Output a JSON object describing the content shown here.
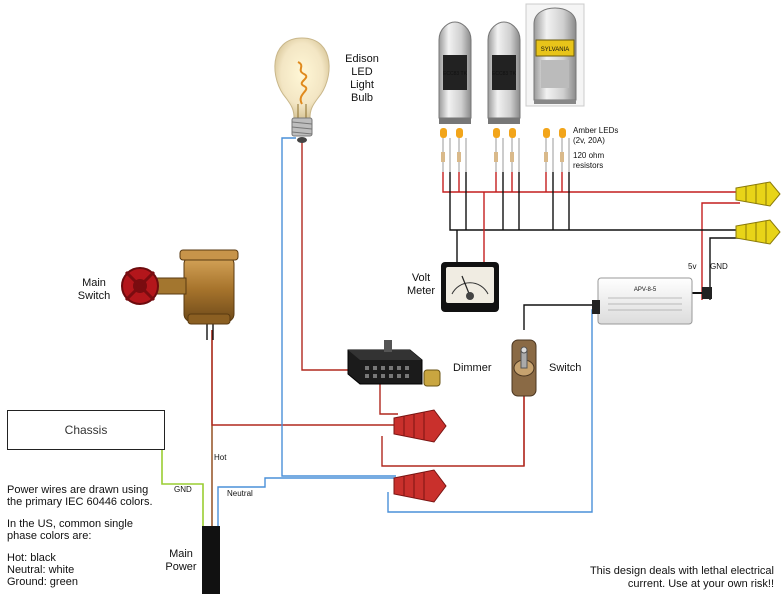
{
  "labels": {
    "bulb": [
      "Edison",
      "LED",
      "Light",
      "Bulb"
    ],
    "main_switch": [
      "Main",
      "Switch"
    ],
    "led_note": [
      "Amber LEDs",
      "(2v, 20A)"
    ],
    "resistor_note": [
      "120 ohm",
      "resistors"
    ],
    "volt_meter": [
      "Volt",
      "Meter"
    ],
    "dimmer": "Dimmer",
    "switch": "Switch",
    "chassis": "Chassis",
    "gnd": "GND",
    "gnd_psu": "GND",
    "v5": "5v",
    "hot": "Hot",
    "neutral": "Neutral",
    "main_power": [
      "Main",
      "Power"
    ],
    "tube_label": "ECC83 TK",
    "tube_brand": "SYLVANIA",
    "psu_label": "APV-8-5"
  },
  "notes": {
    "iec_line1": "Power wires are drawn using",
    "iec_line2": "the primary IEC 60446 colors.",
    "us_line1": "In the US, common single",
    "us_line2": "phase colors are:",
    "hot": "Hot: black",
    "neutral": "Neutral: white",
    "ground": "Ground: green",
    "warning_line1": "This design deals with lethal electrical",
    "warning_line2": "current. Use at your own risk!!"
  },
  "colors": {
    "hot_wire": "#8b1a1a",
    "neutral_wire": "#4a90d9",
    "ground_wire": "#9acd32",
    "dc_wire": "#111111",
    "led_red": "#cc2200",
    "wire_nut_red": "#c9302c",
    "wire_nut_yellow": "#e8d418",
    "valve_red": "#b3161b",
    "brass": "#b8863b"
  }
}
